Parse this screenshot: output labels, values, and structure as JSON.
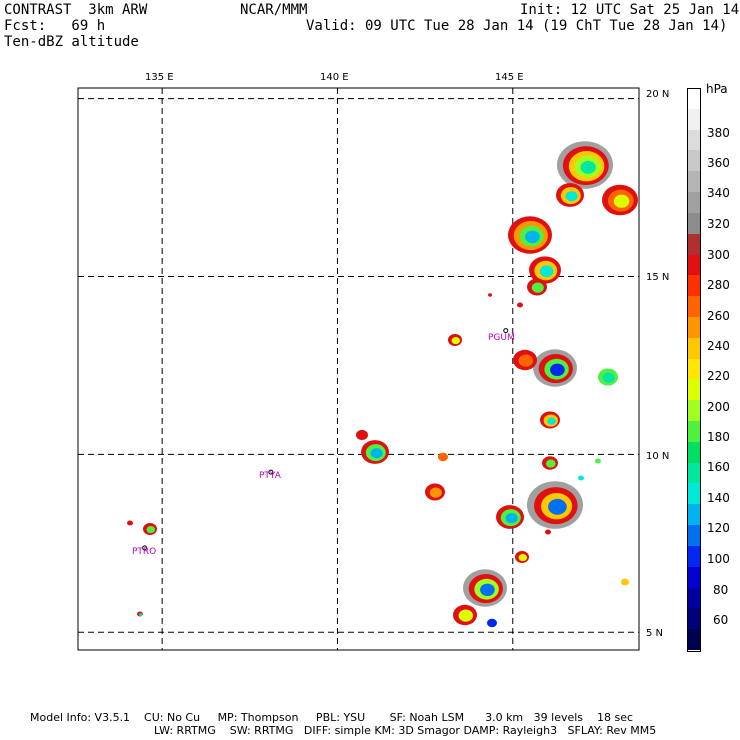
{
  "header": {
    "left1": "CONTRAST  3km ARW",
    "left2": "Fcst:   69 h",
    "left3": "Ten-dBZ altitude",
    "center": "NCAR/MMM",
    "right1": "Init: 12 UTC Sat 25 Jan 14",
    "right2": "Valid: 09 UTC Tue 28 Jan 14 (19 ChT Tue 28 Jan 14)"
  },
  "map": {
    "lon_labels": [
      "135 E",
      "140 E",
      "145 E"
    ],
    "lat_labels": [
      "20 N",
      "15 N",
      "10 N",
      "5 N"
    ],
    "lon_range": [
      132.6,
      148.6
    ],
    "lat_range": [
      4.5,
      20.3
    ],
    "stations": [
      {
        "id": "PGUM",
        "lon": 144.8,
        "lat": 13.48
      },
      {
        "id": "PTYA",
        "lon": 138.1,
        "lat": 9.5
      },
      {
        "id": "PTRO",
        "lon": 134.5,
        "lat": 7.37
      }
    ]
  },
  "colorbar": {
    "unit": "hPa",
    "labels": [
      "380",
      "360",
      "340",
      "320",
      "300",
      "280",
      "260",
      "240",
      "220",
      "200",
      "180",
      "160",
      "140",
      "120",
      "100",
      "80",
      "60"
    ],
    "colors": [
      "#ffffff",
      "#f0f0f0",
      "#dcdcdc",
      "#c8c8c8",
      "#b4b4b4",
      "#a0a0a0",
      "#8c8c8c",
      "#b03030",
      "#e01010",
      "#ff3000",
      "#ff6400",
      "#ff9600",
      "#ffc800",
      "#ffe600",
      "#dcff00",
      "#a0ff20",
      "#50f040",
      "#00e060",
      "#00e8a0",
      "#00e8d8",
      "#00b4f0",
      "#0070f0",
      "#0028f0",
      "#0000d0",
      "#0000a0",
      "#000078",
      "#000050"
    ]
  },
  "footer": {
    "line1": "Model Info: V3.5.1    CU: No Cu     MP: Thompson     PBL: YSU       SF: Noah LSM      3.0 km   39 levels    18 sec",
    "line2": "LW: RRTMG    SW: RRTMG   DIFF: simple KM: 3D Smagor DAMP: Rayleigh3   SFLAY: Rev MM5"
  }
}
